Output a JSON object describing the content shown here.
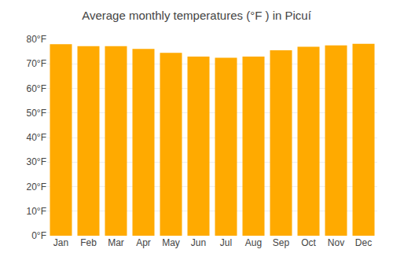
{
  "chart_data": {
    "type": "bar",
    "title": "Average monthly temperatures (°F ) in Picuí",
    "categories": [
      "Jan",
      "Feb",
      "Mar",
      "Apr",
      "May",
      "Jun",
      "Jul",
      "Aug",
      "Sep",
      "Oct",
      "Nov",
      "Dec"
    ],
    "values": [
      78.0,
      77.2,
      77.2,
      76.1,
      74.5,
      73.0,
      72.5,
      73.0,
      75.5,
      77.0,
      77.5,
      78.2
    ],
    "color": "#FFAA00",
    "ylim": [
      0,
      80
    ],
    "yticks": [
      {
        "value": 0,
        "label": "0°F"
      },
      {
        "value": 10,
        "label": "10°F"
      },
      {
        "value": 20,
        "label": "20°F"
      },
      {
        "value": 30,
        "label": "30°F"
      },
      {
        "value": 40,
        "label": "40°F"
      },
      {
        "value": 50,
        "label": "50°F"
      },
      {
        "value": 60,
        "label": "60°F"
      },
      {
        "value": 70,
        "label": "70°F"
      },
      {
        "value": 80,
        "label": "80°F"
      }
    ],
    "grid": true
  }
}
